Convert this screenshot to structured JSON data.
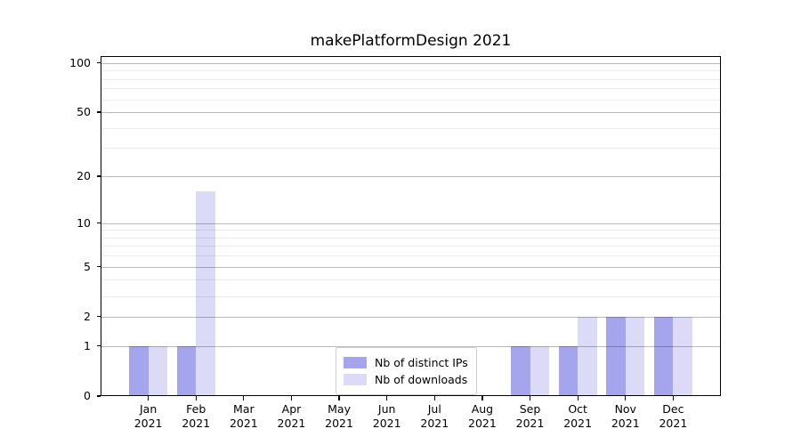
{
  "chart_data": {
    "type": "bar",
    "title": "makePlatformDesign 2021",
    "categories": [
      {
        "month": "Jan",
        "year": "2021"
      },
      {
        "month": "Feb",
        "year": "2021"
      },
      {
        "month": "Mar",
        "year": "2021"
      },
      {
        "month": "Apr",
        "year": "2021"
      },
      {
        "month": "May",
        "year": "2021"
      },
      {
        "month": "Jun",
        "year": "2021"
      },
      {
        "month": "Jul",
        "year": "2021"
      },
      {
        "month": "Aug",
        "year": "2021"
      },
      {
        "month": "Sep",
        "year": "2021"
      },
      {
        "month": "Oct",
        "year": "2021"
      },
      {
        "month": "Nov",
        "year": "2021"
      },
      {
        "month": "Dec",
        "year": "2021"
      }
    ],
    "series": [
      {
        "name": "Nb of distinct IPs",
        "color": "#a5a5ee",
        "values": [
          1,
          1,
          0,
          0,
          0,
          0,
          0,
          0,
          1,
          1,
          2,
          2
        ]
      },
      {
        "name": "Nb of downloads",
        "color": "#dbdbf8",
        "values": [
          1,
          16,
          0,
          0,
          0,
          0,
          0,
          0,
          1,
          2,
          2,
          2
        ]
      }
    ],
    "yaxis": {
      "scale": "log1p",
      "ticks": [
        0,
        1,
        2,
        5,
        10,
        20,
        50,
        100
      ],
      "minor_gridlines": [
        3,
        4,
        6,
        7,
        8,
        9,
        30,
        40,
        60,
        70,
        80,
        90
      ],
      "max": 110
    },
    "legend": {
      "position": "lower center"
    },
    "grid": true
  }
}
